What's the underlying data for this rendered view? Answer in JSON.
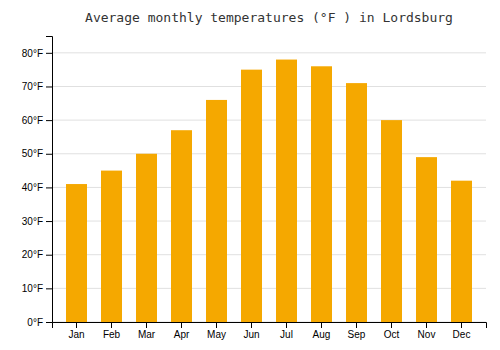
{
  "chart_data": {
    "type": "bar",
    "title": "Average monthly temperatures (°F ) in Lordsburg",
    "categories": [
      "Jan",
      "Feb",
      "Mar",
      "Apr",
      "May",
      "Jun",
      "Jul",
      "Aug",
      "Sep",
      "Oct",
      "Nov",
      "Dec"
    ],
    "values": [
      41,
      45,
      50,
      57,
      66,
      75,
      78,
      76,
      71,
      60,
      49,
      42
    ],
    "color": "#F5A800",
    "ylim": [
      0,
      85
    ],
    "yticks": [
      {
        "value": 0,
        "label": "0°F"
      },
      {
        "value": 10,
        "label": "10°F"
      },
      {
        "value": 20,
        "label": "20°F"
      },
      {
        "value": 30,
        "label": "30°F"
      },
      {
        "value": 40,
        "label": "40°F"
      },
      {
        "value": 50,
        "label": "50°F"
      },
      {
        "value": 60,
        "label": "60°F"
      },
      {
        "value": 70,
        "label": "70°F"
      },
      {
        "value": 80,
        "label": "80°F"
      }
    ],
    "grid": true
  }
}
